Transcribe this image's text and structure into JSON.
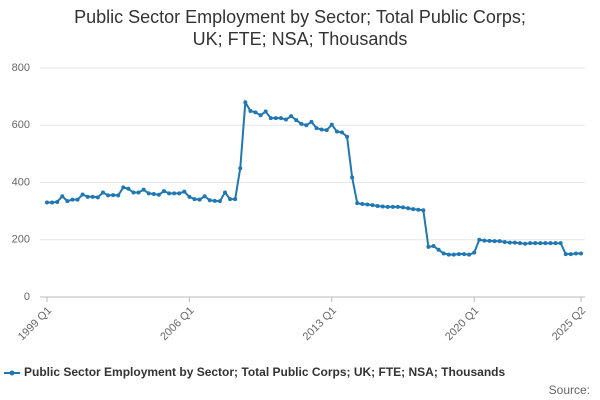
{
  "chart_data": {
    "type": "line",
    "title": "Public Sector Employment by Sector; Total Public Corps; UK; FTE; NSA; Thousands",
    "source": "Source:",
    "categories": [
      "1999 Q1",
      null,
      null,
      null,
      null,
      null,
      null,
      null,
      null,
      null,
      null,
      null,
      null,
      null,
      null,
      null,
      null,
      null,
      null,
      null,
      null,
      null,
      null,
      null,
      null,
      null,
      null,
      null,
      "2006 Q1",
      null,
      null,
      null,
      null,
      null,
      null,
      null,
      null,
      null,
      null,
      null,
      null,
      null,
      null,
      null,
      null,
      null,
      null,
      null,
      null,
      null,
      null,
      null,
      null,
      null,
      null,
      null,
      "2013 Q1",
      null,
      null,
      null,
      null,
      null,
      null,
      null,
      null,
      null,
      null,
      null,
      null,
      null,
      null,
      null,
      null,
      null,
      null,
      null,
      null,
      null,
      null,
      null,
      null,
      null,
      null,
      null,
      "2020 Q1",
      null,
      null,
      null,
      null,
      null,
      null,
      null,
      null,
      null,
      null,
      null,
      null,
      null,
      null,
      null,
      null,
      null,
      null,
      null,
      null,
      "2025 Q2"
    ],
    "series": [
      {
        "name": "Public Sector Employment by Sector; Total Public Corps; UK; FTE; NSA; Thousands",
        "color": "#1f77b4",
        "values": [
          330,
          330,
          332,
          352,
          335,
          340,
          340,
          358,
          350,
          350,
          348,
          365,
          355,
          356,
          355,
          383,
          378,
          365,
          365,
          375,
          362,
          360,
          357,
          370,
          362,
          362,
          362,
          368,
          350,
          342,
          340,
          352,
          338,
          336,
          335,
          365,
          342,
          342,
          450,
          680,
          650,
          645,
          635,
          648,
          625,
          625,
          625,
          620,
          632,
          618,
          605,
          600,
          612,
          590,
          585,
          583,
          602,
          578,
          575,
          560,
          418,
          328,
          325,
          323,
          321,
          318,
          316,
          315,
          315,
          315,
          313,
          310,
          307,
          305,
          303,
          175,
          178,
          165,
          152,
          148,
          148,
          150,
          150,
          148,
          155,
          200,
          197,
          196,
          195,
          195,
          192,
          190,
          190,
          188,
          186,
          188,
          188,
          188,
          188,
          188,
          188,
          188,
          150,
          150,
          152,
          152
        ]
      }
    ],
    "ylim": [
      0,
      800
    ],
    "yticks": [
      0,
      200,
      400,
      600,
      800
    ],
    "grid": true,
    "legend": "bottom"
  }
}
